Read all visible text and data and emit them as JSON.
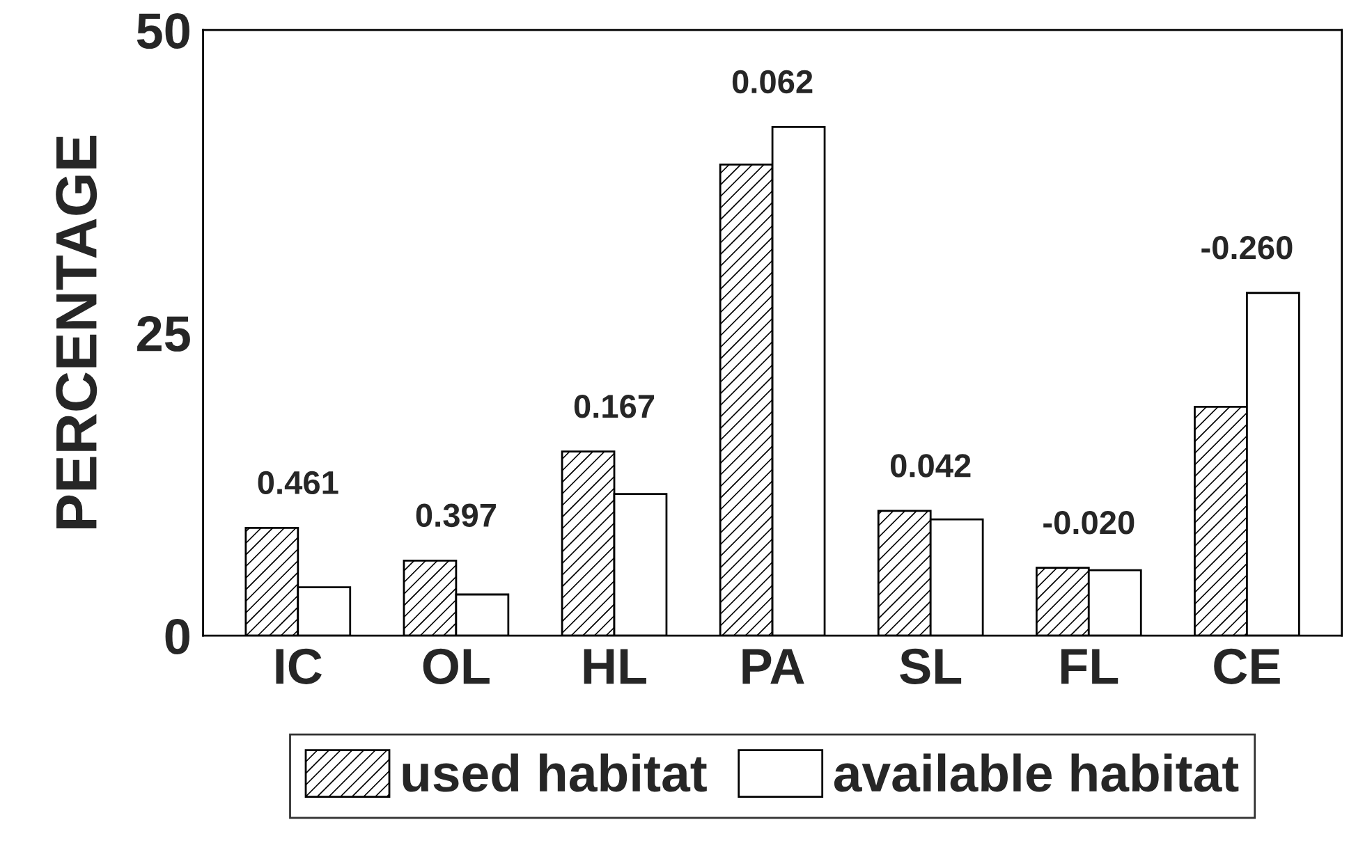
{
  "chart_data": {
    "type": "bar",
    "ylabel": "PERCENTAGE",
    "categories": [
      "IC",
      "OL",
      "HL",
      "PA",
      "SL",
      "FL",
      "CE"
    ],
    "series": [
      {
        "name": "used habitat",
        "color": "#000000",
        "values": [
          8.9,
          6.2,
          15.2,
          38.9,
          10.3,
          5.6,
          18.9
        ]
      },
      {
        "name": "available habitat",
        "color": "#ffffff",
        "values": [
          4.0,
          3.4,
          11.7,
          42.0,
          9.6,
          5.4,
          28.3
        ]
      }
    ],
    "annotations": [
      {
        "text": "0.461",
        "x": "IC",
        "y": 8.9
      },
      {
        "text": "0.397",
        "x": "OL",
        "y": 6.2
      },
      {
        "text": "0.167",
        "x": "HL",
        "y": 15.2
      },
      {
        "text": "0.062",
        "x": "PA",
        "y": 42.0
      },
      {
        "text": "0.042",
        "x": "SL",
        "y": 10.3
      },
      {
        "text": "-0.020",
        "x": "FL",
        "y": 5.6
      },
      {
        "text": "-0.260",
        "x": "CE",
        "y": 28.3
      }
    ],
    "ylim": [
      0,
      50
    ],
    "yticks": [
      0,
      25,
      50
    ],
    "grid": false,
    "legend": "bottom"
  }
}
